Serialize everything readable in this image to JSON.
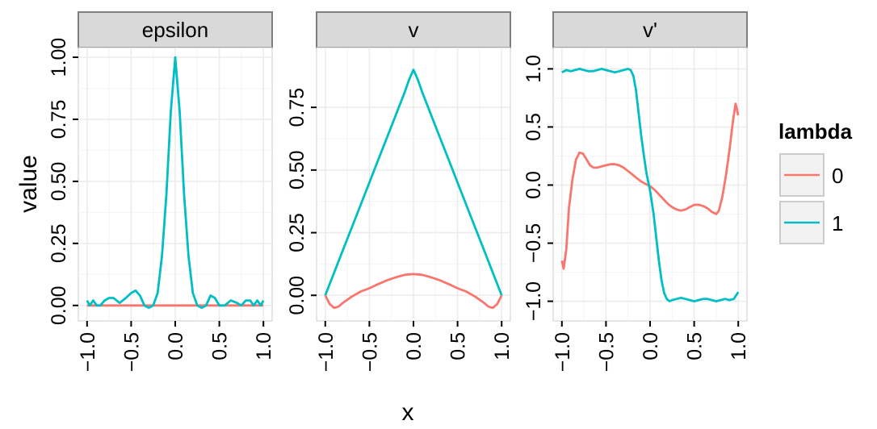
{
  "chart_data": {
    "type": "line",
    "xlabel": "x",
    "ylabel": "value",
    "legend": {
      "title": "lambda",
      "position": "right",
      "entries": [
        "0",
        "1"
      ]
    },
    "colors": {
      "0": "#F8766D",
      "1": "#00BFC4",
      "panel_bg": "#FFFFFF",
      "grid": "#EBEBEB",
      "strip_bg": "#D9D9D9",
      "strip_border": "#7F7F7F",
      "axis": "#000000"
    },
    "x_ticks": [
      -1.0,
      -0.5,
      0.0,
      0.5,
      1.0
    ],
    "x_tick_labels": [
      "-1.0",
      "-0.5",
      "0.0",
      "0.5",
      "1.0"
    ],
    "xlim": [
      -1.0,
      1.0
    ],
    "grid": true,
    "panels": [
      {
        "title": "epsilon",
        "ylim": [
          -0.03,
          1.0
        ],
        "y_ticks": [
          0.0,
          0.25,
          0.5,
          0.75,
          1.0
        ],
        "y_tick_labels": [
          "0.00",
          "0.25",
          "0.50",
          "0.75",
          "1.00"
        ],
        "series": [
          {
            "name": "0",
            "x": [
              -1.0,
              1.0
            ],
            "y": [
              0.0,
              0.0
            ]
          },
          {
            "name": "1",
            "x": [
              -1.0,
              -0.97,
              -0.93,
              -0.89,
              -0.85,
              -0.8,
              -0.75,
              -0.7,
              -0.63,
              -0.56,
              -0.5,
              -0.45,
              -0.4,
              -0.35,
              -0.3,
              -0.25,
              -0.2,
              -0.15,
              -0.1,
              -0.05,
              0.0,
              0.05,
              0.1,
              0.15,
              0.2,
              0.25,
              0.3,
              0.35,
              0.4,
              0.45,
              0.5,
              0.56,
              0.63,
              0.7,
              0.75,
              0.8,
              0.85,
              0.89,
              0.93,
              0.97,
              1.0
            ],
            "y": [
              0.02,
              0.0,
              0.02,
              0.0,
              0.0,
              0.02,
              0.03,
              0.03,
              0.01,
              0.03,
              0.05,
              0.06,
              0.04,
              0.0,
              -0.01,
              0.0,
              0.05,
              0.2,
              0.45,
              0.78,
              1.0,
              0.78,
              0.45,
              0.2,
              0.05,
              0.0,
              -0.01,
              0.0,
              0.04,
              0.03,
              0.0,
              0.0,
              0.02,
              0.01,
              0.0,
              0.02,
              0.02,
              0.0,
              0.02,
              0.0,
              0.02
            ]
          }
        ]
      },
      {
        "title": "v",
        "ylim": [
          -0.07,
          0.95
        ],
        "y_ticks": [
          0.0,
          0.25,
          0.5,
          0.75
        ],
        "y_tick_labels": [
          "0.00",
          "0.25",
          "0.50",
          "0.75"
        ],
        "series": [
          {
            "name": "0",
            "x": [
              -1.0,
              -0.95,
              -0.9,
              -0.85,
              -0.8,
              -0.7,
              -0.6,
              -0.5,
              -0.4,
              -0.3,
              -0.2,
              -0.1,
              0.0,
              0.1,
              0.2,
              0.3,
              0.4,
              0.5,
              0.6,
              0.7,
              0.8,
              0.85,
              0.9,
              0.95,
              1.0
            ],
            "y": [
              0.0,
              -0.035,
              -0.05,
              -0.045,
              -0.03,
              -0.005,
              0.015,
              0.028,
              0.045,
              0.06,
              0.072,
              0.082,
              0.085,
              0.082,
              0.072,
              0.06,
              0.045,
              0.028,
              0.015,
              -0.005,
              -0.03,
              -0.045,
              -0.05,
              -0.035,
              0.0
            ]
          },
          {
            "name": "1",
            "x": [
              -1.0,
              -0.8,
              -0.6,
              -0.4,
              -0.2,
              -0.1,
              -0.05,
              0.0,
              0.05,
              0.1,
              0.2,
              0.4,
              0.6,
              0.8,
              1.0
            ],
            "y": [
              0.0,
              0.18,
              0.36,
              0.54,
              0.72,
              0.81,
              0.86,
              0.9,
              0.86,
              0.81,
              0.72,
              0.54,
              0.36,
              0.18,
              0.0
            ]
          }
        ]
      },
      {
        "title": "v'",
        "ylim": [
          -1.1,
          1.1
        ],
        "y_ticks": [
          -1.0,
          -0.5,
          0.0,
          0.5,
          1.0
        ],
        "y_tick_labels": [
          "-1.0",
          "-0.5",
          "0.0",
          "0.5",
          "1.0"
        ],
        "series": [
          {
            "name": "0",
            "x": [
              -1.0,
              -0.98,
              -0.95,
              -0.92,
              -0.88,
              -0.84,
              -0.8,
              -0.76,
              -0.72,
              -0.68,
              -0.64,
              -0.6,
              -0.55,
              -0.5,
              -0.45,
              -0.4,
              -0.35,
              -0.3,
              -0.25,
              -0.2,
              -0.15,
              -0.1,
              -0.05,
              0.0,
              0.05,
              0.1,
              0.15,
              0.2,
              0.25,
              0.3,
              0.35,
              0.4,
              0.45,
              0.5,
              0.55,
              0.6,
              0.65,
              0.7,
              0.75,
              0.78,
              0.82,
              0.86,
              0.9,
              0.94,
              0.97,
              1.0
            ],
            "y": [
              -0.65,
              -0.72,
              -0.55,
              -0.2,
              0.05,
              0.22,
              0.28,
              0.27,
              0.22,
              0.17,
              0.15,
              0.15,
              0.16,
              0.17,
              0.18,
              0.18,
              0.17,
              0.15,
              0.12,
              0.09,
              0.06,
              0.03,
              0.01,
              -0.01,
              -0.04,
              -0.08,
              -0.12,
              -0.16,
              -0.19,
              -0.21,
              -0.22,
              -0.21,
              -0.19,
              -0.17,
              -0.17,
              -0.18,
              -0.2,
              -0.23,
              -0.25,
              -0.22,
              -0.1,
              0.08,
              0.3,
              0.55,
              0.7,
              0.6
            ]
          },
          {
            "name": "1",
            "x": [
              -1.0,
              -0.95,
              -0.9,
              -0.85,
              -0.8,
              -0.75,
              -0.7,
              -0.65,
              -0.6,
              -0.55,
              -0.5,
              -0.45,
              -0.4,
              -0.35,
              -0.3,
              -0.25,
              -0.22,
              -0.19,
              -0.16,
              -0.13,
              -0.1,
              -0.07,
              -0.04,
              0.0,
              0.04,
              0.07,
              0.1,
              0.13,
              0.16,
              0.19,
              0.22,
              0.25,
              0.3,
              0.35,
              0.4,
              0.45,
              0.5,
              0.55,
              0.6,
              0.65,
              0.7,
              0.75,
              0.8,
              0.85,
              0.9,
              0.95,
              1.0
            ],
            "y": [
              0.97,
              0.99,
              0.98,
              0.99,
              1.0,
              0.99,
              0.98,
              0.98,
              0.99,
              1.0,
              0.99,
              0.98,
              0.97,
              0.98,
              0.99,
              1.0,
              0.99,
              0.94,
              0.82,
              0.62,
              0.42,
              0.25,
              0.1,
              -0.05,
              -0.25,
              -0.45,
              -0.65,
              -0.82,
              -0.93,
              -0.98,
              -1.0,
              -0.99,
              -0.98,
              -0.97,
              -0.98,
              -0.99,
              -1.0,
              -0.99,
              -0.98,
              -0.98,
              -0.99,
              -1.0,
              -0.99,
              -0.98,
              -0.99,
              -0.98,
              -0.92
            ]
          }
        ]
      }
    ]
  }
}
